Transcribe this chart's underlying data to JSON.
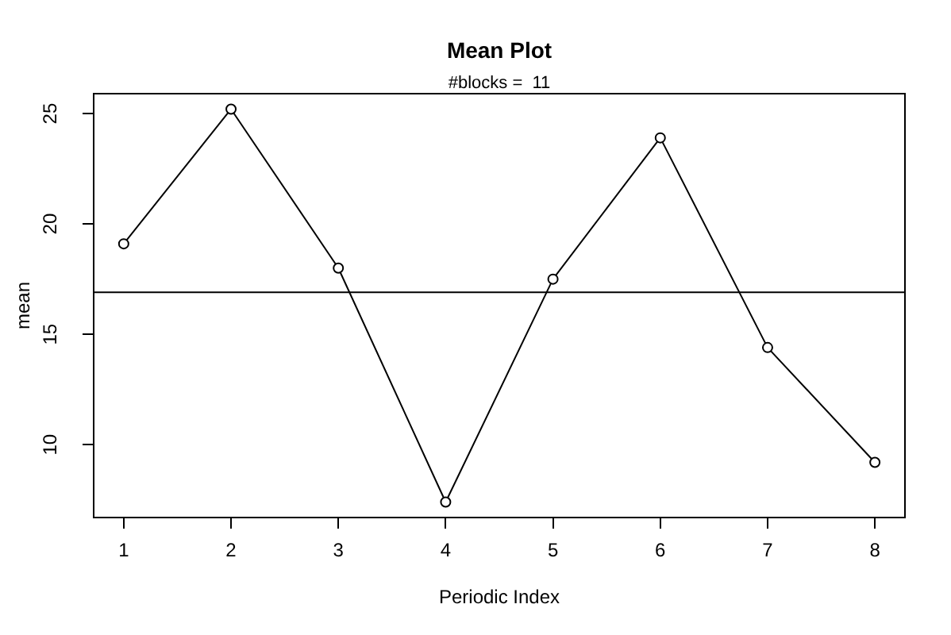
{
  "chart_data": {
    "type": "line",
    "title": "Mean Plot",
    "subtitle": "#blocks =  11",
    "xlabel": "Periodic Index",
    "ylabel": "mean",
    "x": [
      1,
      2,
      3,
      4,
      5,
      6,
      7,
      8
    ],
    "series": [
      {
        "color": "#000000",
        "values": [
          19.1,
          25.2,
          18.0,
          7.4,
          17.5,
          23.9,
          14.4,
          9.2
        ]
      }
    ],
    "xlim": [
      0.72,
      8.28
    ],
    "xticks": [
      1,
      2,
      3,
      4,
      5,
      6,
      7,
      8
    ],
    "ylim": [
      6.7,
      25.9
    ],
    "yticks": [
      10,
      15,
      20,
      25
    ],
    "ref_lines": [
      {
        "axis": "y",
        "value": 16.9,
        "color": "#000000"
      }
    ],
    "marker": "circle",
    "legend": false
  }
}
